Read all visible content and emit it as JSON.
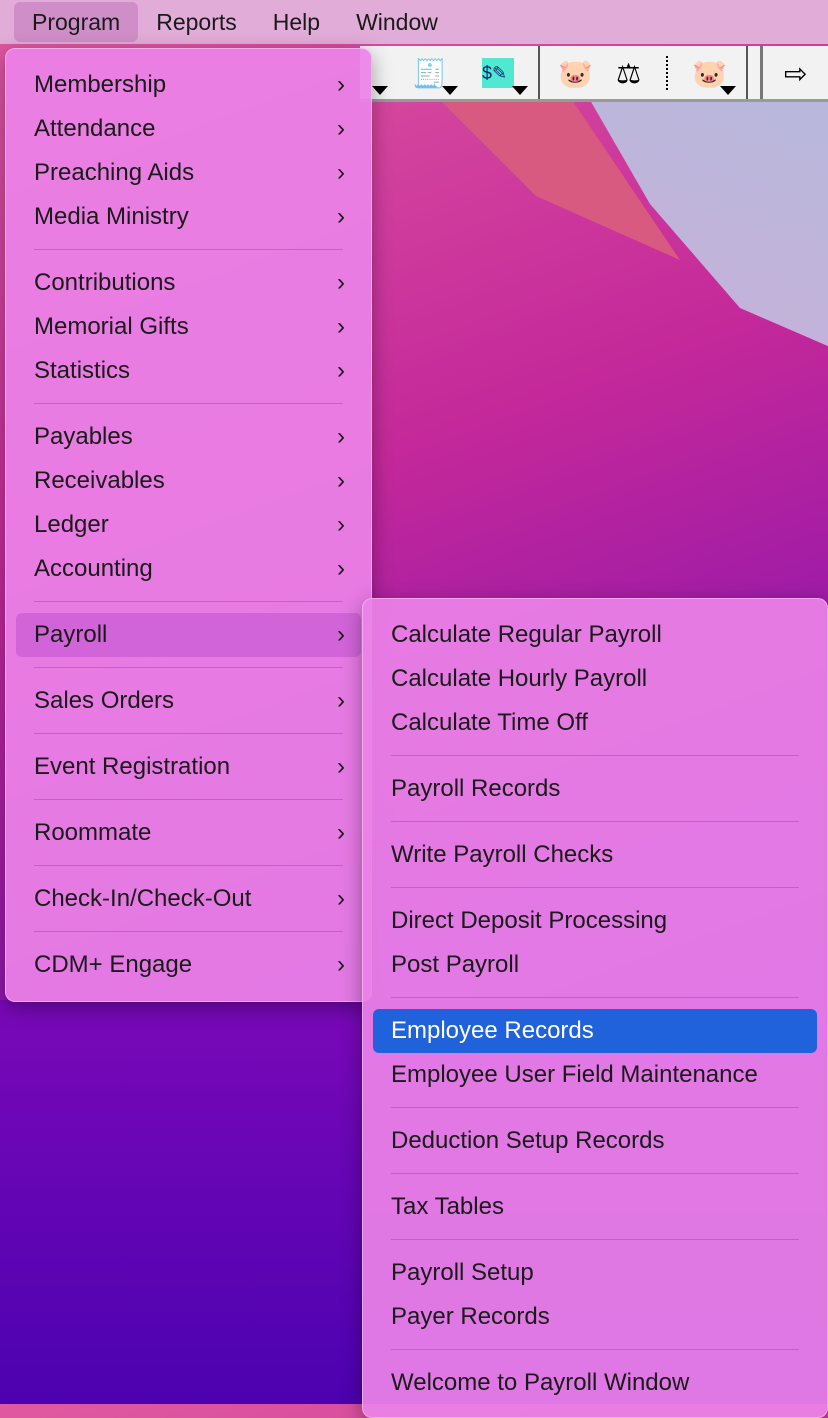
{
  "menubar": {
    "items": [
      "Program",
      "Reports",
      "Help",
      "Window"
    ]
  },
  "toolbar": {
    "icons": [
      "ledger-icon",
      "deposit-icon",
      "check-write-icon",
      "piggy-bank-icon",
      "scales-icon",
      "piggy-bank-dropdown-icon",
      "exit-door-icon"
    ]
  },
  "program_menu": {
    "groups": [
      [
        "Membership",
        "Attendance",
        "Preaching Aids",
        "Media Ministry"
      ],
      [
        "Contributions",
        "Memorial Gifts",
        "Statistics"
      ],
      [
        "Payables",
        "Receivables",
        "Ledger",
        "Accounting"
      ],
      [
        "Payroll"
      ],
      [
        "Sales Orders"
      ],
      [
        "Event Registration"
      ],
      [
        "Roommate"
      ],
      [
        "Check-In/Check-Out"
      ],
      [
        "CDM+ Engage"
      ]
    ]
  },
  "payroll_menu": {
    "groups": [
      [
        "Calculate Regular Payroll",
        "Calculate Hourly Payroll",
        "Calculate Time Off"
      ],
      [
        "Payroll Records"
      ],
      [
        "Write Payroll Checks"
      ],
      [
        "Direct Deposit Processing",
        "Post Payroll"
      ],
      [
        "Employee Records",
        "Employee User Field Maintenance"
      ],
      [
        "Deduction Setup Records"
      ],
      [
        "Tax Tables"
      ],
      [
        "Payroll Setup",
        "Payer Records"
      ],
      [
        "Welcome to Payroll Window"
      ]
    ],
    "selected": "Employee Records"
  },
  "colors": {
    "selection": "#1f62dc",
    "menu_bg": "#ec82e8"
  }
}
